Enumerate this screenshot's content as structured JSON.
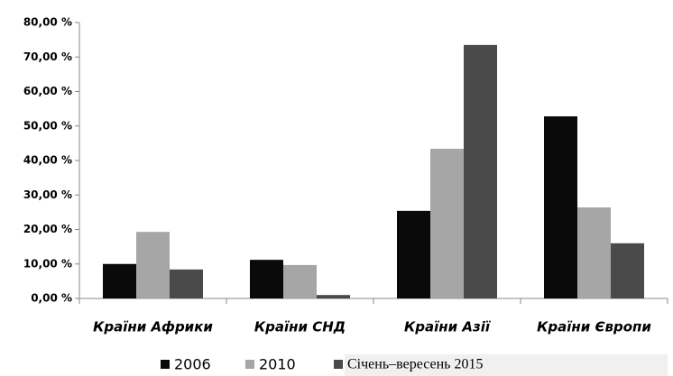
{
  "chart_data": {
    "type": "bar",
    "categories": [
      "Країни Африки",
      "Країни СНД",
      "Країни Азії",
      "Країни Європи"
    ],
    "series": [
      {
        "name": "2006",
        "color": "#0a0a0a",
        "values": [
          10.0,
          11.2,
          25.4,
          52.8
        ]
      },
      {
        "name": "2010",
        "color": "#a6a6a6",
        "values": [
          19.3,
          9.7,
          43.4,
          26.4
        ]
      },
      {
        "name": "Січень–вересень 2015",
        "color": "#4a4a4a",
        "values": [
          8.4,
          1.0,
          73.5,
          16.0
        ]
      }
    ],
    "ylim": [
      0,
      80
    ],
    "yticks": [
      {
        "value": 0,
        "label": "0,00 %"
      },
      {
        "value": 10,
        "label": "10,00 %"
      },
      {
        "value": 20,
        "label": "20,00 %"
      },
      {
        "value": 30,
        "label": "30,00 %"
      },
      {
        "value": 40,
        "label": "40,00 %"
      },
      {
        "value": 50,
        "label": "50,00 %"
      },
      {
        "value": 60,
        "label": "60,00 %"
      },
      {
        "value": 70,
        "label": "70,00 %"
      },
      {
        "value": 80,
        "label": "80,00 %"
      }
    ],
    "grid": false,
    "legend": "bottom"
  }
}
